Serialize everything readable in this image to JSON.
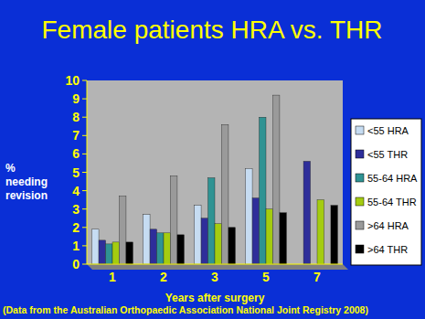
{
  "chart_data": {
    "type": "bar",
    "title": "Female patients HRA vs. THR",
    "x_label": "Years after surgery",
    "y_label": "% needing revision",
    "footnote": "(Data from the Australian Orthopaedic Association National Joint Registry 2008)",
    "categories": [
      "1",
      "2",
      "3",
      "5",
      "7"
    ],
    "series": [
      {
        "name": "<55 HRA",
        "color": "#c6dcf2",
        "values": [
          1.9,
          2.7,
          3.2,
          5.2,
          null
        ]
      },
      {
        "name": "<55 THR",
        "color": "#2e2e9a",
        "values": [
          1.3,
          1.9,
          2.5,
          3.6,
          5.6
        ]
      },
      {
        "name": "55-64 HRA",
        "color": "#2f9393",
        "values": [
          1.1,
          1.7,
          4.7,
          8.0,
          null
        ]
      },
      {
        "name": "55-64 THR",
        "color": "#a4cc10",
        "values": [
          1.2,
          1.7,
          2.2,
          3.0,
          3.5
        ]
      },
      {
        "name": ">64 HRA",
        "color": "#9a9a9a",
        "values": [
          3.7,
          4.8,
          7.6,
          9.2,
          null
        ]
      },
      {
        "name": ">64 THR",
        "color": "#000000",
        "values": [
          1.2,
          1.6,
          2.0,
          2.8,
          3.2
        ]
      }
    ],
    "ylim": [
      0,
      10
    ],
    "yticks": [
      0,
      1,
      2,
      3,
      4,
      5,
      6,
      7,
      8,
      9,
      10
    ],
    "grid": false,
    "legend": "right"
  }
}
